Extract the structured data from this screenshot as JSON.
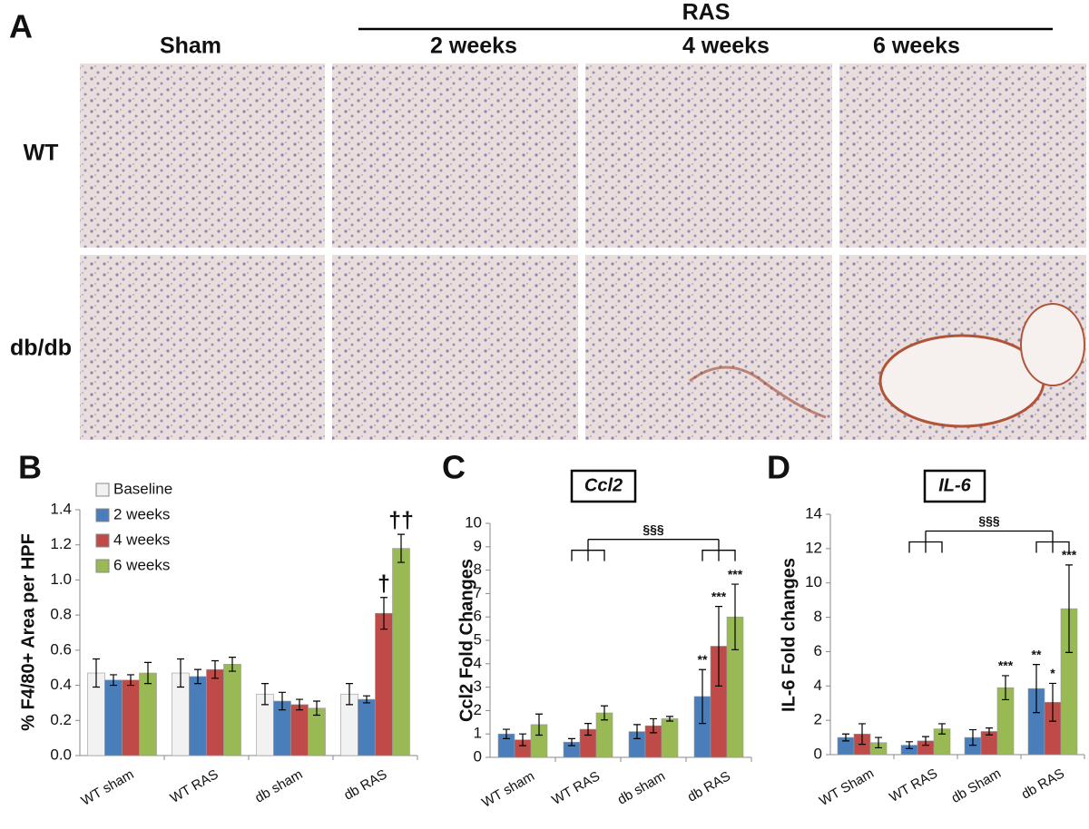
{
  "panel_a": {
    "label": "A",
    "group": "RAS",
    "columns": [
      "Sham",
      "2 weeks",
      "4 weeks",
      "6 weeks"
    ],
    "rows": [
      "WT",
      "db/db"
    ]
  },
  "chart_data": [
    {
      "type": "bar",
      "panel_label": "B",
      "ylabel": "% F4/80+ Area per HPF",
      "categories": [
        "WT sham",
        "WT RAS",
        "db sham",
        "db RAS"
      ],
      "ylim": [
        0,
        1.4
      ],
      "yticks": [
        {
          "value": 0,
          "label": "0.0"
        },
        0.2,
        0.4,
        0.6,
        0.8,
        {
          "value": 1,
          "label": "1.0"
        },
        1.2,
        1.4
      ],
      "legend": "top-left",
      "series": [
        {
          "name": "Baseline",
          "color": "#f2f2f2",
          "values": [
            0.47,
            0.47,
            0.35,
            0.35
          ],
          "errors": [
            0.08,
            0.08,
            0.06,
            0.06
          ],
          "significance": [
            null,
            null,
            null,
            null
          ]
        },
        {
          "name": "2 weeks",
          "color": "#4a7ebb",
          "values": [
            0.43,
            0.45,
            0.31,
            0.32
          ],
          "errors": [
            0.03,
            0.04,
            0.05,
            0.02
          ],
          "significance": [
            null,
            null,
            null,
            null
          ]
        },
        {
          "name": "4 weeks",
          "color": "#be4b48",
          "values": [
            0.43,
            0.49,
            0.29,
            0.81
          ],
          "errors": [
            0.03,
            0.05,
            0.03,
            0.09
          ],
          "significance": [
            null,
            null,
            null,
            "†"
          ]
        },
        {
          "name": "6 weeks",
          "color": "#98b954",
          "values": [
            0.47,
            0.52,
            0.27,
            1.18
          ],
          "errors": [
            0.06,
            0.04,
            0.04,
            0.08
          ],
          "significance": [
            null,
            null,
            null,
            "††"
          ]
        }
      ]
    },
    {
      "type": "bar",
      "panel_label": "C",
      "title": "Ccl2",
      "ylabel": "Ccl2 Fold Changes",
      "categories": [
        "WT sham",
        "WT RAS",
        "db sham",
        "db RAS"
      ],
      "ylim": [
        0,
        10
      ],
      "yticks": [
        0,
        1,
        2,
        3,
        4,
        5,
        6,
        7,
        8,
        9,
        10
      ],
      "comparison_label": "§§§",
      "series": [
        {
          "color": "#4a7ebb",
          "values": [
            1.0,
            0.65,
            1.1,
            2.6
          ],
          "errors": [
            0.2,
            0.15,
            0.3,
            1.15
          ],
          "significance": [
            null,
            null,
            null,
            "**"
          ]
        },
        {
          "color": "#be4b48",
          "values": [
            0.75,
            1.2,
            1.35,
            4.75
          ],
          "errors": [
            0.25,
            0.25,
            0.3,
            1.7
          ],
          "significance": [
            null,
            null,
            null,
            "***"
          ]
        },
        {
          "color": "#98b954",
          "values": [
            1.4,
            1.9,
            1.65,
            6.0
          ],
          "errors": [
            0.45,
            0.3,
            0.1,
            1.4
          ],
          "significance": [
            null,
            null,
            null,
            "***"
          ]
        }
      ]
    },
    {
      "type": "bar",
      "panel_label": "D",
      "title": "IL-6",
      "ylabel": "IL-6 Fold changes",
      "categories": [
        "WT Sham",
        "WT RAS",
        "db Sham",
        "db RAS"
      ],
      "ylim": [
        0,
        14
      ],
      "yticks": [
        0,
        2,
        4,
        6,
        8,
        10,
        12,
        14
      ],
      "comparison_label": "§§§",
      "series": [
        {
          "color": "#4a7ebb",
          "values": [
            1.0,
            0.55,
            1.0,
            3.85
          ],
          "errors": [
            0.2,
            0.2,
            0.45,
            1.4
          ],
          "significance": [
            null,
            null,
            null,
            "**"
          ]
        },
        {
          "color": "#be4b48",
          "values": [
            1.2,
            0.8,
            1.35,
            3.05
          ],
          "errors": [
            0.6,
            0.25,
            0.2,
            1.1
          ],
          "significance": [
            null,
            null,
            null,
            "*"
          ]
        },
        {
          "color": "#98b954",
          "values": [
            0.7,
            1.5,
            3.9,
            8.5
          ],
          "errors": [
            0.3,
            0.3,
            0.7,
            2.55
          ],
          "significance": [
            null,
            null,
            "***",
            "***"
          ]
        }
      ]
    }
  ]
}
